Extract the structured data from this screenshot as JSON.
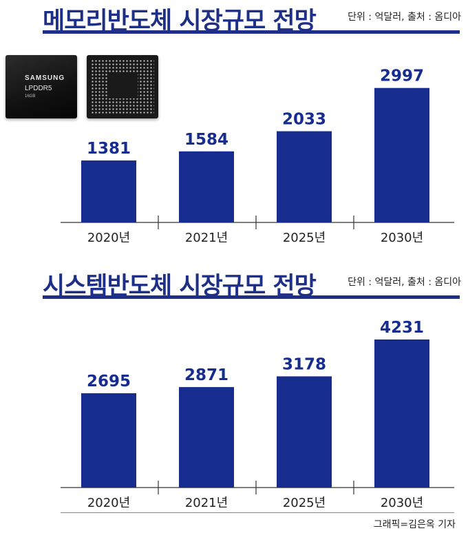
{
  "chart_data": [
    {
      "type": "bar",
      "title": "메모리반도체 시장규모 전망",
      "unit_source": "단위 : 억달러, 출처 : 옴디아",
      "categories": [
        "2020년",
        "2021년",
        "2025년",
        "2030년"
      ],
      "values": [
        1381,
        1584,
        2033,
        2997
      ],
      "ylim": [
        0,
        3300
      ],
      "xlabel": "",
      "ylabel": ""
    },
    {
      "type": "bar",
      "title": "시스템반도체 시장규모 전망",
      "unit_source": "단위 : 억달러, 출처 : 옴디아",
      "categories": [
        "2020년",
        "2021년",
        "2025년",
        "2030년"
      ],
      "values": [
        2695,
        2871,
        3178,
        4231
      ],
      "ylim": [
        0,
        4231
      ],
      "xlabel": "",
      "ylabel": ""
    }
  ],
  "chip": {
    "brand": "SAMSUNG",
    "model": "LPDDR5",
    "capacity": "16GB"
  },
  "credit": "그래픽=김은옥 기자",
  "colors": {
    "bar": "#162d8f",
    "title": "#1d2f87"
  }
}
